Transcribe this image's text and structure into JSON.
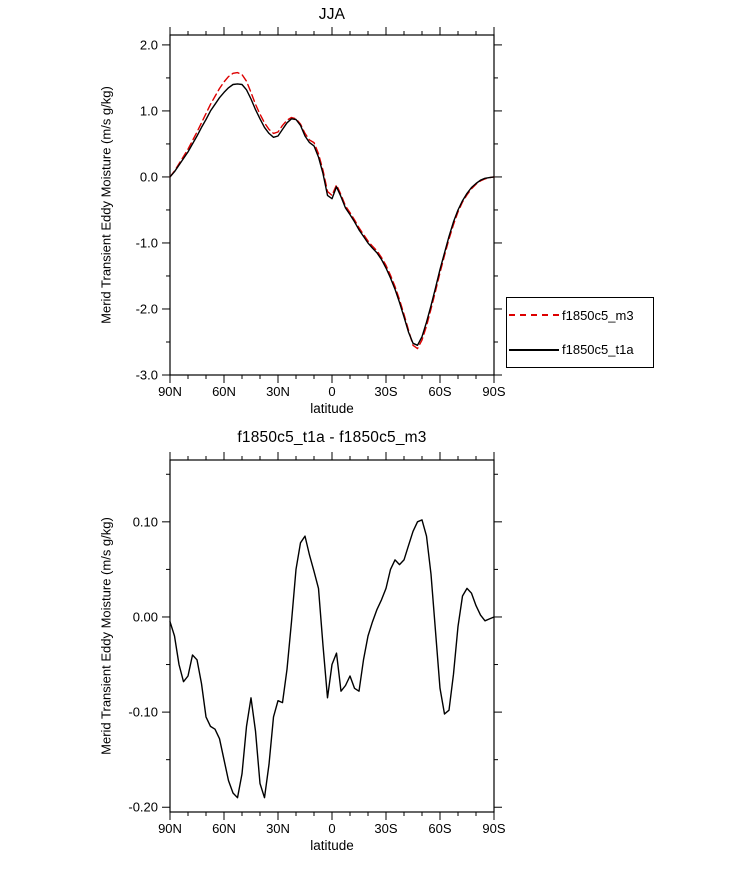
{
  "accent_colors": {
    "series_red": "#dd0000",
    "series_black": "#000000",
    "axis": "#000000",
    "background": "#ffffff"
  },
  "chart_data": [
    {
      "type": "line",
      "title": "JJA",
      "xlabel": "latitude",
      "ylabel": "Merid Transient Eddy Moisture (m/s g/kg)",
      "xlim": [
        90,
        -90
      ],
      "ylim": [
        -3.0,
        2.15
      ],
      "grid": false,
      "legend_position": "outside-right",
      "xticks": {
        "values": [
          90,
          60,
          30,
          0,
          -30,
          -60,
          -90
        ],
        "labels": [
          "90N",
          "60N",
          "30N",
          "0",
          "30S",
          "60S",
          "90S"
        ],
        "minor_step": 10
      },
      "yticks": {
        "values": [
          2.0,
          1.0,
          0.0,
          -1.0,
          -2.0,
          -3.0
        ],
        "labels": [
          "2.0",
          "1.0",
          "0.0",
          "-1.0",
          "-2.0",
          "-3.0"
        ],
        "minor_step": 0.5
      },
      "x": [
        90,
        87.5,
        85,
        82.5,
        80,
        77.5,
        75,
        72.5,
        70,
        67.5,
        65,
        62.5,
        60,
        57.5,
        55,
        52.5,
        50,
        47.5,
        45,
        42.5,
        40,
        37.5,
        35,
        32.5,
        30,
        27.5,
        25,
        22.5,
        20,
        17.5,
        15,
        12.5,
        10,
        7.5,
        5,
        2.5,
        0,
        -2.5,
        -5,
        -7.5,
        -10,
        -12.5,
        -15,
        -17.5,
        -20,
        -22.5,
        -25,
        -27.5,
        -30,
        -32.5,
        -35,
        -37.5,
        -40,
        -42.5,
        -45,
        -47.5,
        -50,
        -52.5,
        -55,
        -57.5,
        -60,
        -62.5,
        -65,
        -67.5,
        -70,
        -72.5,
        -75,
        -77.5,
        -80,
        -82.5,
        -85,
        -87.5,
        -90
      ],
      "series": [
        {
          "name": "f1850c5_m3",
          "color": "#dd0000",
          "dash": [
            7,
            4
          ],
          "width": 1.4,
          "values": [
            0,
            0.09,
            0.2,
            0.31,
            0.42,
            0.55,
            0.68,
            0.82,
            0.96,
            1.1,
            1.22,
            1.34,
            1.44,
            1.52,
            1.57,
            1.58,
            1.55,
            1.45,
            1.28,
            1.1,
            0.95,
            0.82,
            0.72,
            0.66,
            0.68,
            0.78,
            0.86,
            0.9,
            0.88,
            0.8,
            0.66,
            0.56,
            0.52,
            0.35,
            0.1,
            -0.22,
            -0.28,
            -0.12,
            -0.27,
            -0.44,
            -0.54,
            -0.65,
            -0.77,
            -0.87,
            -0.97,
            -1.05,
            -1.12,
            -1.22,
            -1.34,
            -1.49,
            -1.66,
            -1.86,
            -2.08,
            -2.32,
            -2.55,
            -2.6,
            -2.47,
            -2.26,
            -2,
            -1.73,
            -1.45,
            -1.19,
            -0.94,
            -0.72,
            -0.53,
            -0.38,
            -0.27,
            -0.18,
            -0.11,
            -0.06,
            -0.03,
            -0.01,
            0
          ]
        },
        {
          "name": "f1850c5_t1a",
          "color": "#000000",
          "dash": null,
          "width": 1.4,
          "values": [
            0,
            0.08,
            0.18,
            0.28,
            0.38,
            0.5,
            0.62,
            0.75,
            0.87,
            1,
            1.1,
            1.2,
            1.28,
            1.35,
            1.4,
            1.41,
            1.4,
            1.32,
            1.18,
            1.02,
            0.88,
            0.75,
            0.66,
            0.6,
            0.62,
            0.72,
            0.82,
            0.88,
            0.87,
            0.78,
            0.62,
            0.52,
            0.47,
            0.3,
            0.05,
            -0.28,
            -0.33,
            -0.15,
            -0.3,
            -0.47,
            -0.57,
            -0.68,
            -0.8,
            -0.9,
            -1,
            -1.08,
            -1.15,
            -1.25,
            -1.38,
            -1.53,
            -1.7,
            -1.9,
            -2.12,
            -2.35,
            -2.52,
            -2.55,
            -2.42,
            -2.2,
            -1.95,
            -1.68,
            -1.4,
            -1.15,
            -0.9,
            -0.68,
            -0.5,
            -0.36,
            -0.25,
            -0.16,
            -0.1,
            -0.05,
            -0.02,
            -0.01,
            0
          ]
        }
      ]
    },
    {
      "type": "line",
      "title": "f1850c5_t1a - f1850c5_m3",
      "xlabel": "latitude",
      "ylabel": "Merid Transient Eddy Moisture (m/s g/kg)",
      "xlim": [
        90,
        -90
      ],
      "ylim": [
        -0.205,
        0.165
      ],
      "grid": false,
      "legend_position": "none",
      "xticks": {
        "values": [
          90,
          60,
          30,
          0,
          -30,
          -60,
          -90
        ],
        "labels": [
          "90N",
          "60N",
          "30N",
          "0",
          "30S",
          "60S",
          "90S"
        ],
        "minor_step": 10
      },
      "yticks": {
        "values": [
          0.1,
          0.0,
          -0.1,
          -0.2
        ],
        "labels": [
          "0.10",
          "0.00",
          "-0.10",
          "-0.20"
        ],
        "minor_step": 0.05
      },
      "x": [
        90,
        87.5,
        85,
        82.5,
        80,
        77.5,
        75,
        72.5,
        70,
        67.5,
        65,
        62.5,
        60,
        57.5,
        55,
        52.5,
        50,
        47.5,
        45,
        42.5,
        40,
        37.5,
        35,
        32.5,
        30,
        27.5,
        25,
        22.5,
        20,
        17.5,
        15,
        12.5,
        10,
        7.5,
        5,
        2.5,
        0,
        -2.5,
        -5,
        -7.5,
        -10,
        -12.5,
        -15,
        -17.5,
        -20,
        -22.5,
        -25,
        -27.5,
        -30,
        -32.5,
        -35,
        -37.5,
        -40,
        -42.5,
        -45,
        -47.5,
        -50,
        -52.5,
        -55,
        -57.5,
        -60,
        -62.5,
        -65,
        -67.5,
        -70,
        -72.5,
        -75,
        -77.5,
        -80,
        -82.5,
        -85,
        -87.5,
        -90
      ],
      "series": [
        {
          "name": "f1850c5_t1a - f1850c5_m3",
          "color": "#000000",
          "dash": null,
          "width": 1.4,
          "values": [
            -0.005,
            -0.02,
            -0.05,
            -0.068,
            -0.062,
            -0.04,
            -0.045,
            -0.07,
            -0.105,
            -0.115,
            -0.118,
            -0.128,
            -0.15,
            -0.172,
            -0.185,
            -0.19,
            -0.165,
            -0.115,
            -0.085,
            -0.12,
            -0.175,
            -0.19,
            -0.155,
            -0.105,
            -0.088,
            -0.09,
            -0.055,
            -0.005,
            0.05,
            0.078,
            0.085,
            0.065,
            0.048,
            0.03,
            -0.03,
            -0.085,
            -0.05,
            -0.038,
            -0.078,
            -0.072,
            -0.062,
            -0.075,
            -0.078,
            -0.045,
            -0.02,
            -0.005,
            0.008,
            0.018,
            0.03,
            0.05,
            0.06,
            0.055,
            0.06,
            0.075,
            0.09,
            0.1,
            0.102,
            0.085,
            0.045,
            -0.015,
            -0.075,
            -0.102,
            -0.098,
            -0.06,
            -0.01,
            0.022,
            0.03,
            0.025,
            0.012,
            0.002,
            -0.004,
            -0.002,
            0
          ]
        }
      ]
    }
  ]
}
